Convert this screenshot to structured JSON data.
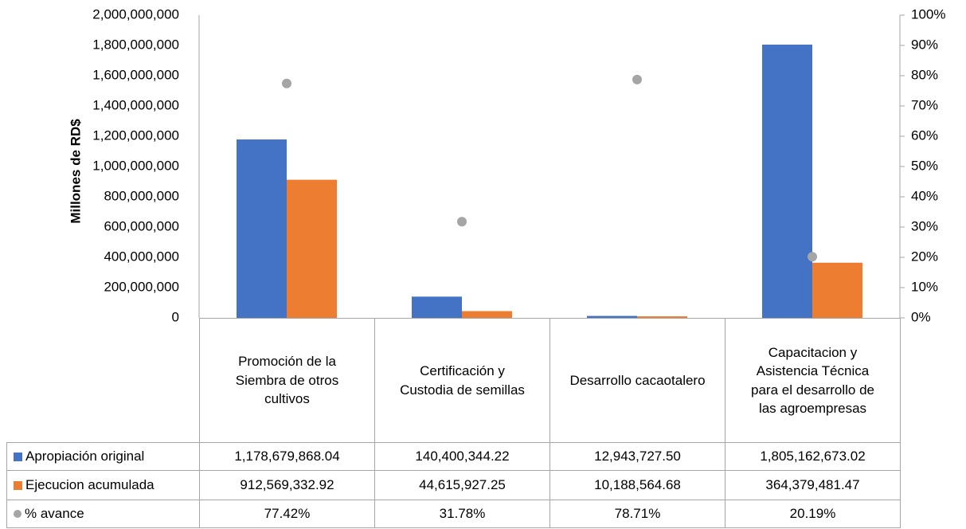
{
  "chart_data": {
    "type": "bar",
    "y_label": "Millones de RD$",
    "categories": [
      "Promoción de la Siembra de otros cultivos",
      "Certificación y Custodia de semillas",
      "Desarrollo cacaotalero",
      "Capacitacion y Asistencia Técnica para el desarrollo de las agroempresas"
    ],
    "series": [
      {
        "name": "Apropiación original",
        "color": "#4472c4",
        "values": [
          1178679868.04,
          140400344.22,
          12943727.5,
          1805162673.02
        ],
        "value_labels": [
          "1,178,679,868.04",
          "140,400,344.22",
          "12,943,727.50",
          "1,805,162,673.02"
        ]
      },
      {
        "name": "Ejecucion acumulada",
        "color": "#ed7d31",
        "values": [
          912569332.92,
          44615927.25,
          10188564.68,
          364379481.47
        ],
        "value_labels": [
          "912,569,332.92",
          "44,615,927.25",
          "10,188,564.68",
          "364,379,481.47"
        ]
      },
      {
        "name": "% avance",
        "color": "#a5a5a5",
        "type": "scatter",
        "axis": "y2",
        "values": [
          77.42,
          31.78,
          78.71,
          20.19
        ],
        "value_labels": [
          "77.42%",
          "31.78%",
          "78.71%",
          "20.19%"
        ]
      }
    ],
    "ylim": [
      0,
      2000000000
    ],
    "yticks": [
      0,
      {
        "value": 200000000,
        "label": "200,000,000"
      },
      {
        "value": 400000000,
        "label": "400,000,000"
      },
      {
        "value": 600000000,
        "label": "600,000,000"
      },
      {
        "value": 800000000,
        "label": "800,000,000"
      },
      {
        "value": 1000000000,
        "label": "1,000,000,000"
      },
      {
        "value": 1200000000,
        "label": "1,200,000,000"
      },
      {
        "value": 1400000000,
        "label": "1,400,000,000"
      },
      {
        "value": 1600000000,
        "label": "1,600,000,000"
      },
      {
        "value": 1800000000,
        "label": "1,800,000,000"
      },
      {
        "value": 2000000000,
        "label": "2,000,000,000"
      }
    ],
    "y2lim": [
      0,
      100
    ],
    "y2ticks": [
      {
        "value": 0,
        "label": "0%"
      },
      {
        "value": 10,
        "label": "10%"
      },
      {
        "value": 20,
        "label": "20%"
      },
      {
        "value": 30,
        "label": "30%"
      },
      {
        "value": 40,
        "label": "40%"
      },
      {
        "value": 50,
        "label": "50%"
      },
      {
        "value": 60,
        "label": "60%"
      },
      {
        "value": 70,
        "label": "70%"
      },
      {
        "value": 80,
        "label": "80%"
      },
      {
        "value": 90,
        "label": "90%"
      },
      {
        "value": 100,
        "label": "100%"
      }
    ],
    "grid": false,
    "data_table": true
  }
}
